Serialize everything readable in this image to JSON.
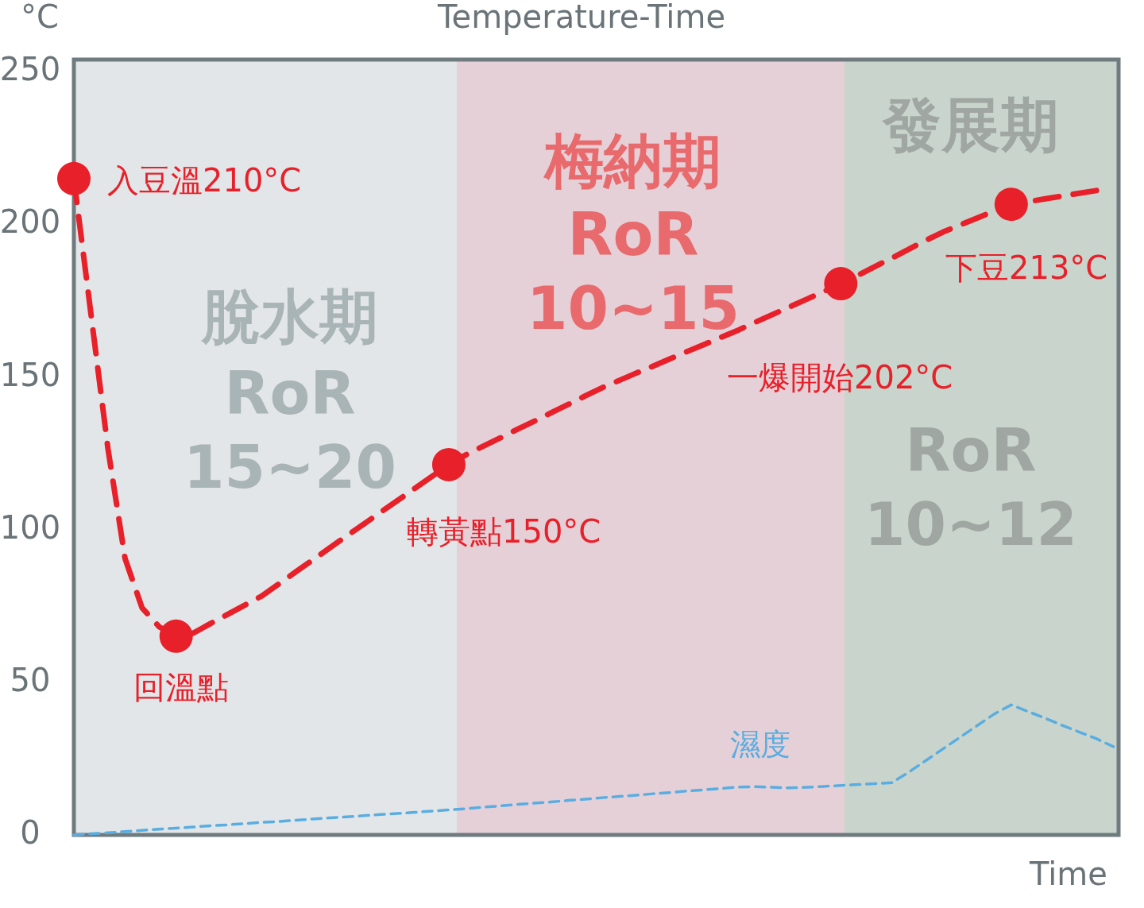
{
  "chart_data": {
    "type": "line",
    "title": "Temperature-Time",
    "xlabel": "Time",
    "ylabel": "°C",
    "categories": [
      null,
      null,
      null,
      null,
      null,
      null,
      null,
      null,
      null,
      null,
      null,
      null,
      null,
      null,
      null,
      null,
      null,
      null,
      null,
      null,
      null,
      null,
      null,
      null,
      null,
      null,
      null,
      null,
      null,
      null,
      null,
      null,
      null,
      null,
      null,
      null,
      null,
      null,
      null,
      null,
      null,
      null,
      null,
      null,
      null,
      null,
      null,
      null,
      null,
      null,
      null,
      null,
      null,
      null,
      null,
      null,
      null,
      null,
      null,
      null,
      null,
      null
    ],
    "ylim": [
      0,
      254
    ],
    "yticks": [
      0,
      50,
      100,
      150,
      200,
      250
    ],
    "tick_labels": "y",
    "series": [
      {
        "color": "#e8202a",
        "line_style": "dashed",
        "values": [
          215,
          170.7,
          126.5,
          90.6,
          74.4,
          68.2,
          65.1,
          66.1,
          69.2,
          72.2,
          75.2,
          78.2,
          82.1,
          86.1,
          90,
          94,
          97.9,
          101.8,
          105.7,
          109.6,
          113.5,
          117.4,
          121.3,
          124.5,
          127.3,
          130,
          132.8,
          135.5,
          138.3,
          141,
          143.8,
          146.5,
          148.9,
          151.3,
          153.6,
          156,
          158.4,
          160.7,
          163.1,
          165.4,
          168,
          170.5,
          173,
          175.5,
          178,
          180.6,
          183.3,
          186.2,
          189,
          191.9,
          194.8,
          197.5,
          199.8,
          202.1,
          204.4,
          206.6,
          207.4,
          208.4,
          209.3,
          210.2,
          211.1,
          null
        ]
      },
      {
        "type": "scatter",
        "color": "#e8202a",
        "values": [
          215,
          null,
          null,
          null,
          null,
          null,
          65.1,
          null,
          null,
          null,
          null,
          null,
          null,
          null,
          null,
          null,
          null,
          null,
          null,
          null,
          null,
          null,
          121.3,
          null,
          null,
          null,
          null,
          null,
          null,
          null,
          null,
          null,
          null,
          null,
          null,
          null,
          null,
          null,
          null,
          null,
          null,
          null,
          null,
          null,
          null,
          180.6,
          null,
          null,
          null,
          null,
          null,
          null,
          null,
          null,
          null,
          206.6,
          null,
          null,
          null,
          null,
          null,
          null
        ]
      },
      {
        "name": "濕度",
        "color": "#5aade0",
        "line_style": "dashed",
        "values": [
          0,
          0.4,
          0.7,
          1.1,
          1.5,
          1.9,
          2.2,
          2.6,
          3,
          3.3,
          3.7,
          4.1,
          4.4,
          4.8,
          5.2,
          5.6,
          5.9,
          6.3,
          6.7,
          7,
          7.4,
          7.8,
          8.2,
          8.6,
          9.1,
          9.5,
          10,
          10.4,
          10.8,
          11.3,
          11.7,
          12.2,
          12.6,
          13,
          13.5,
          13.9,
          14.4,
          14.8,
          15.2,
          15.7,
          15.8,
          15.6,
          15.4,
          15.6,
          15.9,
          16.2,
          16.5,
          16.8,
          17.1,
          20.6,
          24.4,
          28.2,
          32,
          35.8,
          39.6,
          42.6,
          40.4,
          38.2,
          35.9,
          33.7,
          31.5,
          28.9
        ]
      }
    ],
    "annotations": [
      "入豆溫210°C",
      "回溫點",
      "轉黃點150°C",
      "一爆開始202°C",
      "下豆213°C",
      "脫水期\nRoR\n15~20",
      "梅納期\nRoR\n10~15",
      "發展期\nRoR\n10~12"
    ]
  }
}
